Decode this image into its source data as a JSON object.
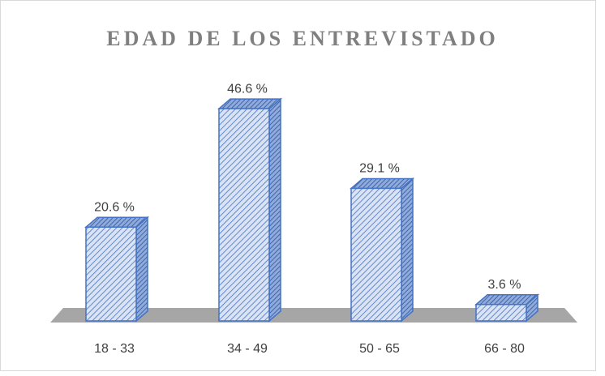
{
  "chart_data": {
    "type": "bar3d",
    "title": "EDAD DE LOS ENTREVISTADO",
    "categories": [
      "18 - 33",
      "34 - 49",
      "50 - 65",
      "66 - 80"
    ],
    "values": [
      20.6,
      46.6,
      29.1,
      3.6
    ],
    "value_labels": [
      "20.6 %",
      "46.6 %",
      "29.1 %",
      "3.6 %"
    ],
    "color": "#4472c4"
  }
}
